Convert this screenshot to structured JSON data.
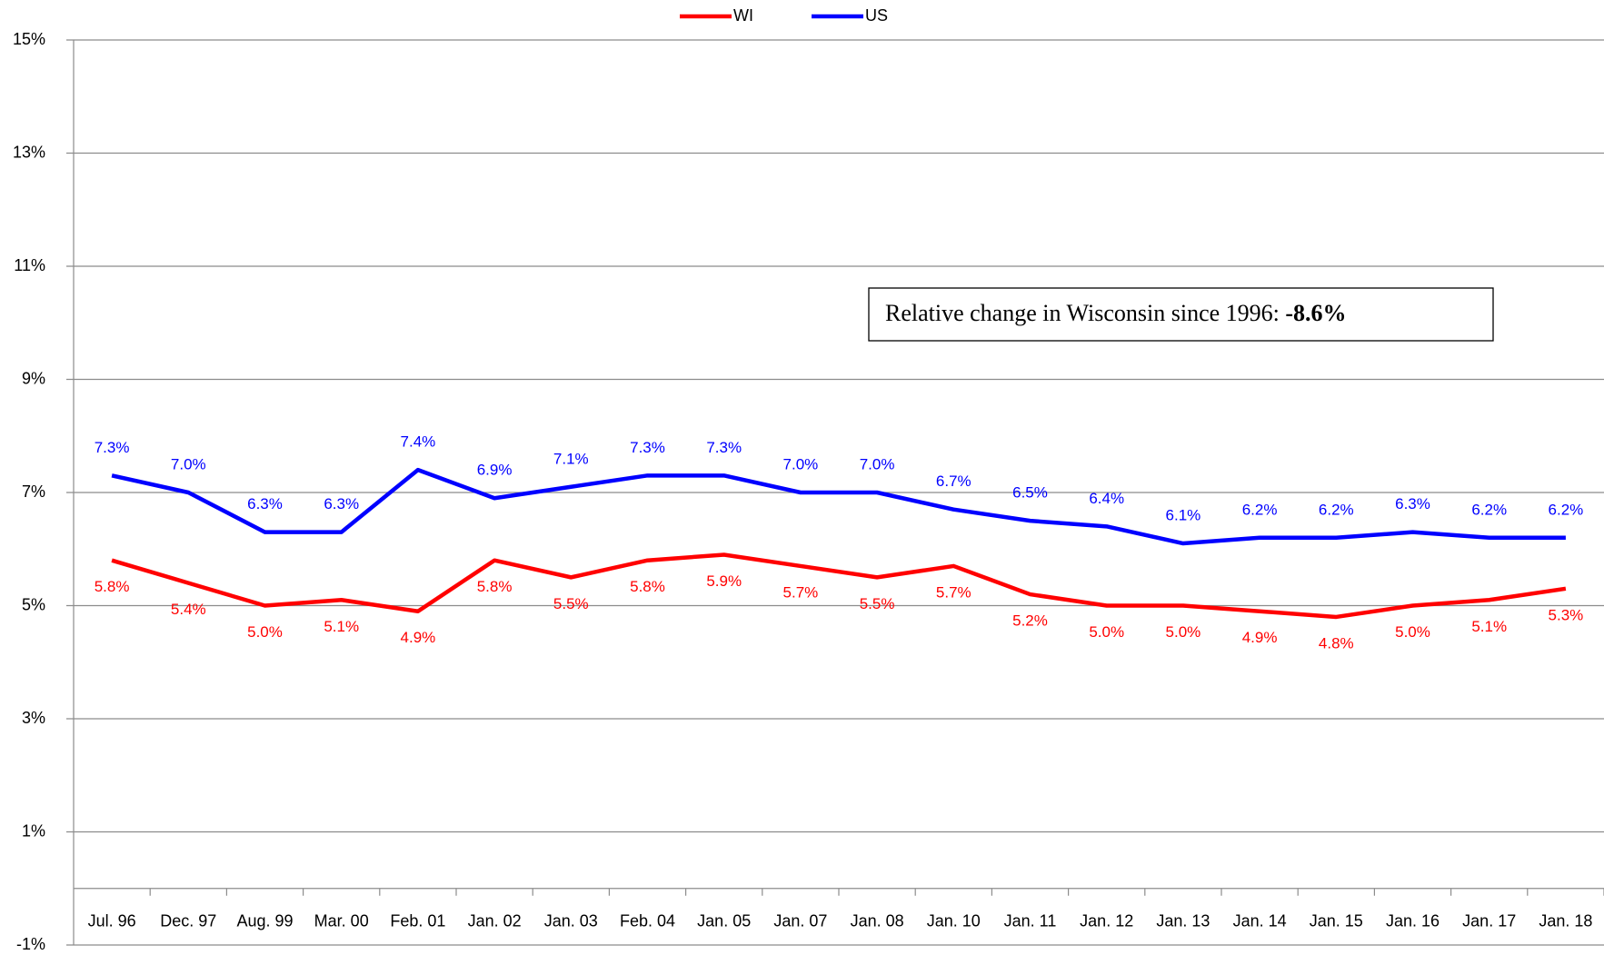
{
  "chart_data": {
    "type": "line",
    "categories": [
      "Jul. 96",
      "Dec. 97",
      "Aug. 99",
      "Mar. 00",
      "Feb. 01",
      "Jan. 02",
      "Jan. 03",
      "Feb. 04",
      "Jan. 05",
      "Jan. 07",
      "Jan. 08",
      "Jan. 10",
      "Jan. 11",
      "Jan. 12",
      "Jan. 13",
      "Jan. 14",
      "Jan. 15",
      "Jan. 16",
      "Jan. 17",
      "Jan. 18"
    ],
    "series": [
      {
        "name": "WI",
        "color": "#ff0000",
        "values": [
          5.8,
          5.4,
          5.0,
          5.1,
          4.9,
          5.8,
          5.5,
          5.8,
          5.9,
          5.7,
          5.5,
          5.7,
          5.2,
          5.0,
          5.0,
          4.9,
          4.8,
          5.0,
          5.1,
          5.3
        ],
        "value_labels": [
          "5.8%",
          "5.4%",
          "5.0%",
          "5.1%",
          "4.9%",
          "5.8%",
          "5.5%",
          "5.8%",
          "5.9%",
          "5.7%",
          "5.5%",
          "5.7%",
          "5.2%",
          "5.0%",
          "5.0%",
          "4.9%",
          "4.8%",
          "5.0%",
          "5.1%",
          "5.3%"
        ]
      },
      {
        "name": "US",
        "color": "#0000ff",
        "values": [
          7.3,
          7.0,
          6.3,
          6.3,
          7.4,
          6.9,
          7.1,
          7.3,
          7.3,
          7.0,
          7.0,
          6.7,
          6.5,
          6.4,
          6.1,
          6.2,
          6.2,
          6.3,
          6.2,
          6.2
        ],
        "value_labels": [
          "7.3%",
          "7.0%",
          "6.3%",
          "6.3%",
          "7.4%",
          "6.9%",
          "7.1%",
          "7.3%",
          "7.3%",
          "7.0%",
          "7.0%",
          "6.7%",
          "6.5%",
          "6.4%",
          "6.1%",
          "6.2%",
          "6.2%",
          "6.3%",
          "6.2%",
          "6.2%"
        ]
      }
    ],
    "ylim": [
      -1,
      15
    ],
    "yticks": [
      {
        "value": -1,
        "label": "-1%"
      },
      {
        "value": 1,
        "label": "1%"
      },
      {
        "value": 3,
        "label": "3%"
      },
      {
        "value": 5,
        "label": "5%"
      },
      {
        "value": 7,
        "label": "7%"
      },
      {
        "value": 9,
        "label": "9%"
      },
      {
        "value": 11,
        "label": "11%"
      },
      {
        "value": 13,
        "label": "13%"
      },
      {
        "value": 15,
        "label": "15%"
      }
    ],
    "grid": true,
    "legend": "top",
    "annotation": {
      "text": "Relative change in Wisconsin since 1996: ",
      "value": "-8.6%"
    }
  }
}
